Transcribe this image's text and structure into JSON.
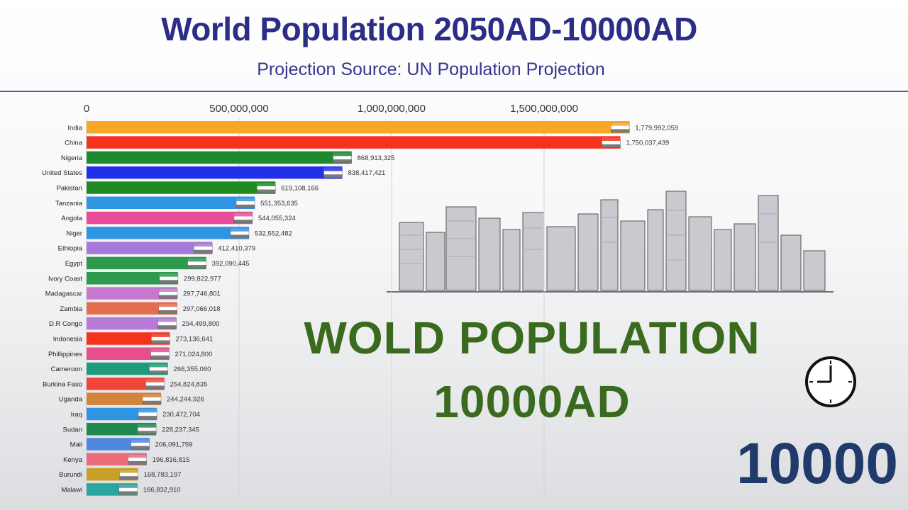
{
  "header": {
    "title": "World Population 2050AD-10000AD",
    "subtitle": "Projection Source: UN Population Projection"
  },
  "overlay": {
    "line1": "WOLD POPULATION",
    "line2": "10000AD",
    "year": "10000"
  },
  "icons": [
    "clock-icon",
    "city-skyline-illustration",
    "country-flag-icon"
  ],
  "colors": {
    "title": "#2b2d86",
    "overlay_text": "#3a6a1e",
    "year": "#1f3a6b"
  },
  "chart_data": {
    "type": "bar",
    "orientation": "horizontal",
    "x_ticks": [
      {
        "value": 0,
        "label": "0"
      },
      {
        "value": 500000000,
        "label": "500,000,000"
      },
      {
        "value": 1000000000,
        "label": "1,000,000,000"
      },
      {
        "value": 1500000000,
        "label": "1,500,000,000"
      }
    ],
    "grid": true,
    "series": [
      {
        "category": "India",
        "value": 1779992059,
        "label": "1,779,992,059",
        "color": "#f9a825"
      },
      {
        "category": "China",
        "value": 1750037439,
        "label": "1,750,037,439",
        "color": "#f4321e"
      },
      {
        "category": "Nigeria",
        "value": 868913325,
        "label": "868,913,325",
        "color": "#1e8a2e"
      },
      {
        "category": "United States",
        "value": 838417421,
        "label": "838,417,421",
        "color": "#2331e6"
      },
      {
        "category": "Pakistan",
        "value": 619108166,
        "label": "619,108,166",
        "color": "#1e8a20"
      },
      {
        "category": "Tanzania",
        "value": 551353635,
        "label": "551,353,635",
        "color": "#2f95e3"
      },
      {
        "category": "Angola",
        "value": 544055324,
        "label": "544,055,324",
        "color": "#ea4c9a"
      },
      {
        "category": "Niger",
        "value": 532552482,
        "label": "532,552,482",
        "color": "#2f95e3"
      },
      {
        "category": "Ethiopia",
        "value": 412410379,
        "label": "412,410,379",
        "color": "#a678d8"
      },
      {
        "category": "Egypt",
        "value": 392090445,
        "label": "392,090,445",
        "color": "#2e9a4e"
      },
      {
        "category": "Ivory Coast",
        "value": 299822977,
        "label": "299,822,977",
        "color": "#2e9a4e"
      },
      {
        "category": "Madagascar",
        "value": 297746801,
        "label": "297,746,801",
        "color": "#c779d0"
      },
      {
        "category": "Zambia",
        "value": 297066018,
        "label": "297,066,018",
        "color": "#e46c4f"
      },
      {
        "category": "D.R Congo",
        "value": 294499800,
        "label": "294,499,800",
        "color": "#b67ad8"
      },
      {
        "category": "Indonesia",
        "value": 273136641,
        "label": "273,136,641",
        "color": "#f4321e"
      },
      {
        "category": "Phillippines",
        "value": 271024800,
        "label": "271,024,800",
        "color": "#e64e8e"
      },
      {
        "category": "Cameroon",
        "value": 266355060,
        "label": "266,355,060",
        "color": "#1f9a7a"
      },
      {
        "category": "Burkina Faso",
        "value": 254824835,
        "label": "254,824,835",
        "color": "#f0463a"
      },
      {
        "category": "Uganda",
        "value": 244244926,
        "label": "244,244,926",
        "color": "#d4843a"
      },
      {
        "category": "Iraq",
        "value": 230472704,
        "label": "230,472,704",
        "color": "#2f95e3"
      },
      {
        "category": "Sudan",
        "value": 228237345,
        "label": "228,237,345",
        "color": "#1e8a4e"
      },
      {
        "category": "Mali",
        "value": 206091759,
        "label": "206,091,759",
        "color": "#4f87e0"
      },
      {
        "category": "Kenya",
        "value": 196816815,
        "label": "196,816,815",
        "color": "#ec6a7a"
      },
      {
        "category": "Burundi",
        "value": 168783197,
        "label": "168,783,197",
        "color": "#c9a027"
      },
      {
        "category": "Malawi",
        "value": 166832910,
        "label": "166,832,910",
        "color": "#2aa6a0"
      }
    ]
  }
}
